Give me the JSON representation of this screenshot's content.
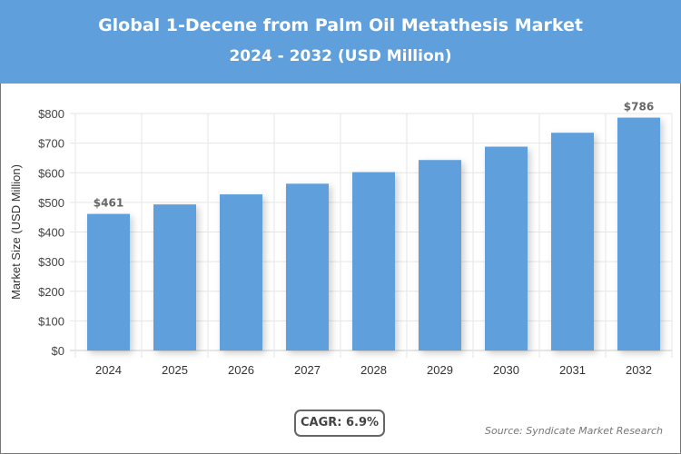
{
  "header": {
    "title": "Global 1-Decene from Palm Oil Metathesis Market",
    "subtitle": "2024 - 2032 (USD Million)"
  },
  "chart_data": {
    "type": "bar",
    "categories": [
      "2024",
      "2025",
      "2026",
      "2027",
      "2028",
      "2029",
      "2030",
      "2031",
      "2032"
    ],
    "values": [
      461,
      493,
      527,
      563,
      602,
      643,
      688,
      735,
      786
    ],
    "data_labels": {
      "0": "$461",
      "8": "$786"
    },
    "ylabel": "Market Size (USD Million)",
    "ylim": [
      0,
      800
    ],
    "yticks": [
      "$0",
      "$100",
      "$200",
      "$300",
      "$400",
      "$500",
      "$600",
      "$700",
      "$800"
    ],
    "grid": true,
    "bar_color": "#5f9fdc"
  },
  "footer": {
    "cagr": "CAGR: 6.9%",
    "source": "Source: Syndicate Market Research"
  }
}
